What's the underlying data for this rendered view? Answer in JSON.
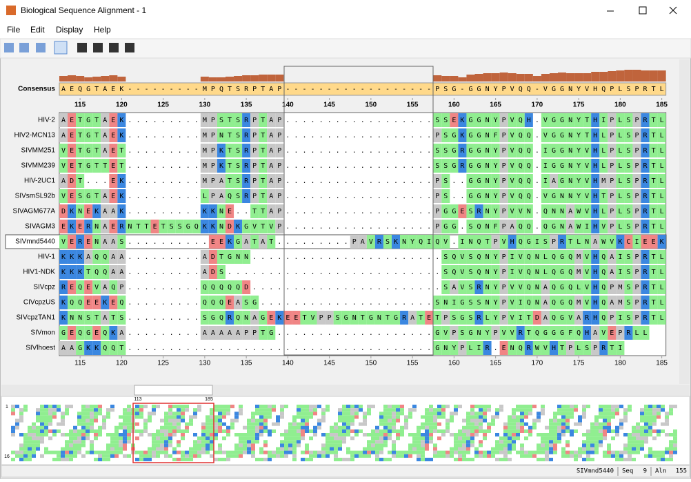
{
  "window": {
    "title": "Biological Sequence Alignment - 1"
  },
  "menu": [
    "File",
    "Edit",
    "Display",
    "Help"
  ],
  "alignment": {
    "consensus_label": "Consensus",
    "consensus": "AEQGTAEK---------MPQTSRPTAP------------------PSG-GGNYPVQQ-VGGNYVHQPLSPRTL",
    "conservation": [
      40,
      45,
      40,
      30,
      35,
      40,
      45,
      35,
      0,
      0,
      0,
      0,
      0,
      0,
      0,
      0,
      0,
      35,
      30,
      30,
      35,
      40,
      45,
      45,
      50,
      50,
      50,
      0,
      0,
      0,
      0,
      0,
      0,
      0,
      0,
      0,
      0,
      0,
      0,
      0,
      0,
      0,
      0,
      0,
      0,
      45,
      40,
      40,
      30,
      50,
      55,
      60,
      60,
      65,
      60,
      55,
      55,
      40,
      55,
      60,
      65,
      60,
      60,
      60,
      70,
      70,
      75,
      80,
      85,
      85,
      80,
      80,
      80
    ],
    "ticks": [
      115,
      120,
      125,
      130,
      135,
      140,
      145,
      150,
      155,
      160,
      165,
      170,
      175,
      180,
      185
    ],
    "residue_colors": {
      "K": "#3b87e0",
      "R": "#3b87e0",
      "H": "#3b87e0",
      "D": "#f08585",
      "E": "#f08585",
      "A": "#c8c8c8",
      "P": "#c8c8c8",
      "G": "#90ee90",
      "S": "#90ee90",
      "T": "#90ee90",
      "N": "#90ee90",
      "Q": "#90ee90",
      "V": "#90ee90",
      "L": "#90ee90",
      "I": "#90ee90",
      "M": "#c8c8c8",
      "F": "#90ee90",
      "Y": "#90ee90",
      "W": "#90ee90",
      "C": "#f08585"
    },
    "sequences": [
      {
        "name": "HIV-2",
        "residues": "AETGTAEK.........MPSTSRPTAP..................SSEKGGNYPVQH.VGGNYTHIPLSPRTL"
      },
      {
        "name": "HIV2-MCN13",
        "residues": "AETGTAEK.........MPNTSRPTAP..................PSGKGGNFPVQQ.VGGNYTHLPLSPRTL"
      },
      {
        "name": "SIVMM251",
        "residues": "VETGTAET.........MPKTSRPTAP..................SSGRGGNYPVQQ.IGGNYVHLPLSPRTL"
      },
      {
        "name": "SIVMM239",
        "residues": "VETGTTET.........MPKTSRPTAP..................SSGRGGNYPVQQ.IGGNYVHLPLSPRTL"
      },
      {
        "name": "HIV-2UC1",
        "residues": "ADT...EK.........MPATSRPTAP..................PS..GGNYPVQQ.IAGNYVHMPLSPRTL"
      },
      {
        "name": "SIVsmSL92b",
        "residues": "VESGTAEK.........LPAQSRPTAP..................PS..GGNYPVQQ.VGNNYVHTPLSPRTL"
      },
      {
        "name": "SIVAGM677A",
        "residues": "DKNEKAAK.........KKNE..TTAP..................PGGESRNYPVVN.QNNAWVHLPLSPRTL"
      },
      {
        "name": "SIVAGM3",
        "residues": "EKERNAERNTTETSSGQKKNDKGVTVP..................PGG.SQNFPAQQ.QGNAWIHVPLSPRTL"
      },
      {
        "name": "SIVmnd5440",
        "residues": "VERENAAS..........EEKGATAT.........PAVRSKNYQIQV.INQTPVHQGISPRTLNAWVKCIEEK"
      },
      {
        "name": "HIV-1",
        "residues": "KKKAQQAA.........ADTGNN.......................SQVSQNYPIVQNLQGQMVHQAISPRTL"
      },
      {
        "name": "HIV1-NDK",
        "residues": "KKKTQQAA.........ADS..........................SQVSQNYPIVQNLQGQMVHQAISPRTL"
      },
      {
        "name": "SIVcpz",
        "residues": "REQEVAQP.........QQQQQD.......................SAVSRNYPVVQNAQGQLVHQPMSPRTL"
      },
      {
        "name": "CIVcpzUS",
        "residues": "KQQEEKEQ.........QQQEASG.....................SNIGSSNYPVIQNAQGQMVHQAMSPRTL"
      },
      {
        "name": "SIVcpzTAN1",
        "residues": "KNNSTATS.........SGQRQNAGEKEETVPPSGNTGNTGRATETPSGSRLYPVITDAQGVARHQPISPRTL"
      },
      {
        "name": "SIVmon",
        "residues": "GEQGEQKA.........AAAAAPPTG...................GVPSGNYPVVRTQGGGFQHAVEPRLL"
      },
      {
        "name": "SIVlhoest",
        "residues": "AAGKKQQT.....................................GNYPLIR.ENQRWVHTPLSPRTI"
      }
    ]
  },
  "overview": {
    "range": [
      113,
      185
    ],
    "rows": [
      1,
      16
    ]
  },
  "status": {
    "sequence": "SIVmnd5440",
    "seq_label": "Seq",
    "seq": 9,
    "aln_label": "Aln",
    "aln": 155
  }
}
